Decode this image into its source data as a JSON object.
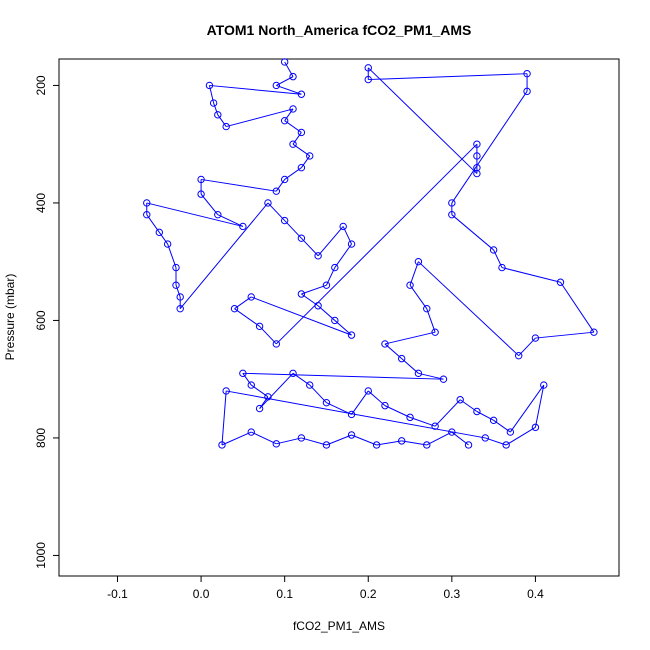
{
  "chart_data": {
    "type": "scatter",
    "title": "ATOM1 North_America fCO2_PM1_AMS",
    "xlabel": "fCO2_PM1_AMS",
    "ylabel": "Pressure (mbar)",
    "xlim": [
      -0.17,
      0.5
    ],
    "ylim": [
      1035,
      155
    ],
    "y_reversed": true,
    "grid": false,
    "legend": "none",
    "point_color": "#0000ff",
    "line_color": "#0000ff",
    "xticks": [
      -0.1,
      0.0,
      0.1,
      0.2,
      0.3,
      0.4
    ],
    "xtick_labels": [
      "-0.1",
      "0.0",
      "0.1",
      "0.2",
      "0.3",
      "0.4"
    ],
    "yticks": [
      200,
      400,
      600,
      800,
      1000
    ],
    "ytick_labels": [
      "200",
      "400",
      "600",
      "800",
      "1000"
    ],
    "series": [
      {
        "points": [
          {
            "x": 0.1,
            "y": 160
          },
          {
            "x": 0.11,
            "y": 185
          },
          {
            "x": 0.09,
            "y": 200
          },
          {
            "x": 0.12,
            "y": 215
          },
          {
            "x": 0.01,
            "y": 200
          },
          {
            "x": 0.015,
            "y": 230
          },
          {
            "x": 0.02,
            "y": 250
          },
          {
            "x": 0.03,
            "y": 270
          },
          {
            "x": 0.11,
            "y": 240
          },
          {
            "x": 0.1,
            "y": 260
          },
          {
            "x": 0.12,
            "y": 280
          },
          {
            "x": 0.11,
            "y": 300
          },
          {
            "x": 0.13,
            "y": 320
          },
          {
            "x": 0.12,
            "y": 340
          },
          {
            "x": 0.1,
            "y": 360
          },
          {
            "x": 0.09,
            "y": 380
          },
          {
            "x": 0.0,
            "y": 360
          },
          {
            "x": 0.0,
            "y": 385
          },
          {
            "x": 0.02,
            "y": 420
          },
          {
            "x": 0.05,
            "y": 440
          },
          {
            "x": -0.065,
            "y": 400
          },
          {
            "x": -0.065,
            "y": 420
          },
          {
            "x": -0.05,
            "y": 450
          },
          {
            "x": -0.04,
            "y": 470
          },
          {
            "x": -0.03,
            "y": 510
          },
          {
            "x": -0.03,
            "y": 540
          },
          {
            "x": -0.025,
            "y": 560
          },
          {
            "x": -0.025,
            "y": 580
          },
          {
            "x": 0.08,
            "y": 400
          },
          {
            "x": 0.1,
            "y": 430
          },
          {
            "x": 0.12,
            "y": 460
          },
          {
            "x": 0.14,
            "y": 490
          },
          {
            "x": 0.17,
            "y": 440
          },
          {
            "x": 0.18,
            "y": 470
          },
          {
            "x": 0.16,
            "y": 510
          },
          {
            "x": 0.15,
            "y": 540
          },
          {
            "x": 0.12,
            "y": 555
          },
          {
            "x": 0.14,
            "y": 575
          },
          {
            "x": 0.16,
            "y": 600
          },
          {
            "x": 0.18,
            "y": 625
          },
          {
            "x": 0.06,
            "y": 560
          },
          {
            "x": 0.04,
            "y": 580
          },
          {
            "x": 0.07,
            "y": 610
          },
          {
            "x": 0.09,
            "y": 640
          },
          {
            "x": 0.33,
            "y": 300
          },
          {
            "x": 0.33,
            "y": 320
          },
          {
            "x": 0.33,
            "y": 340
          },
          {
            "x": 0.33,
            "y": 350
          },
          {
            "x": 0.2,
            "y": 170
          },
          {
            "x": 0.2,
            "y": 190
          },
          {
            "x": 0.39,
            "y": 180
          },
          {
            "x": 0.39,
            "y": 210
          },
          {
            "x": 0.3,
            "y": 400
          },
          {
            "x": 0.3,
            "y": 420
          },
          {
            "x": 0.35,
            "y": 480
          },
          {
            "x": 0.36,
            "y": 510
          },
          {
            "x": 0.43,
            "y": 535
          },
          {
            "x": 0.47,
            "y": 620
          },
          {
            "x": 0.4,
            "y": 630
          },
          {
            "x": 0.38,
            "y": 660
          },
          {
            "x": 0.26,
            "y": 500
          },
          {
            "x": 0.25,
            "y": 540
          },
          {
            "x": 0.27,
            "y": 580
          },
          {
            "x": 0.28,
            "y": 620
          },
          {
            "x": 0.22,
            "y": 640
          },
          {
            "x": 0.24,
            "y": 665
          },
          {
            "x": 0.26,
            "y": 690
          },
          {
            "x": 0.29,
            "y": 700
          },
          {
            "x": 0.05,
            "y": 690
          },
          {
            "x": 0.06,
            "y": 710
          },
          {
            "x": 0.08,
            "y": 730
          },
          {
            "x": 0.07,
            "y": 750
          },
          {
            "x": 0.11,
            "y": 690
          },
          {
            "x": 0.13,
            "y": 710
          },
          {
            "x": 0.15,
            "y": 740
          },
          {
            "x": 0.18,
            "y": 760
          },
          {
            "x": 0.2,
            "y": 720
          },
          {
            "x": 0.22,
            "y": 745
          },
          {
            "x": 0.25,
            "y": 765
          },
          {
            "x": 0.28,
            "y": 780
          },
          {
            "x": 0.31,
            "y": 735
          },
          {
            "x": 0.33,
            "y": 755
          },
          {
            "x": 0.35,
            "y": 770
          },
          {
            "x": 0.37,
            "y": 790
          },
          {
            "x": 0.41,
            "y": 710
          },
          {
            "x": 0.4,
            "y": 782
          },
          {
            "x": 0.365,
            "y": 812
          },
          {
            "x": 0.34,
            "y": 800
          },
          {
            "x": 0.03,
            "y": 720
          },
          {
            "x": 0.025,
            "y": 812
          },
          {
            "x": 0.06,
            "y": 790
          },
          {
            "x": 0.09,
            "y": 810
          },
          {
            "x": 0.12,
            "y": 800
          },
          {
            "x": 0.15,
            "y": 812
          },
          {
            "x": 0.18,
            "y": 795
          },
          {
            "x": 0.21,
            "y": 812
          },
          {
            "x": 0.24,
            "y": 805
          },
          {
            "x": 0.27,
            "y": 812
          },
          {
            "x": 0.3,
            "y": 790
          },
          {
            "x": 0.32,
            "y": 812
          }
        ]
      }
    ]
  }
}
